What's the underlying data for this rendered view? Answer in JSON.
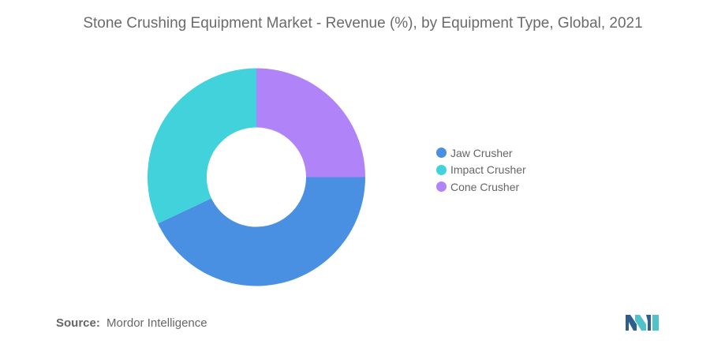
{
  "chart_data": {
    "type": "pie",
    "title": "Stone Crushing Equipment Market - Revenue (%), by Equipment Type, Global, 2021",
    "donut": true,
    "start_direction": "east",
    "clockwise": true,
    "slices": [
      {
        "label": "Jaw Crusher",
        "value": 43,
        "color": "#4a90e2"
      },
      {
        "label": "Impact Crusher",
        "value": 32,
        "color": "#41d2dc"
      },
      {
        "label": "Cone Crusher",
        "value": 25,
        "color": "#b083f8"
      }
    ],
    "legend_position": "right"
  },
  "source": {
    "label": "Source:",
    "text": "Mordor Intelligence"
  },
  "logo": {
    "colors": [
      "#2e5f8a",
      "#4fc3c9"
    ]
  }
}
